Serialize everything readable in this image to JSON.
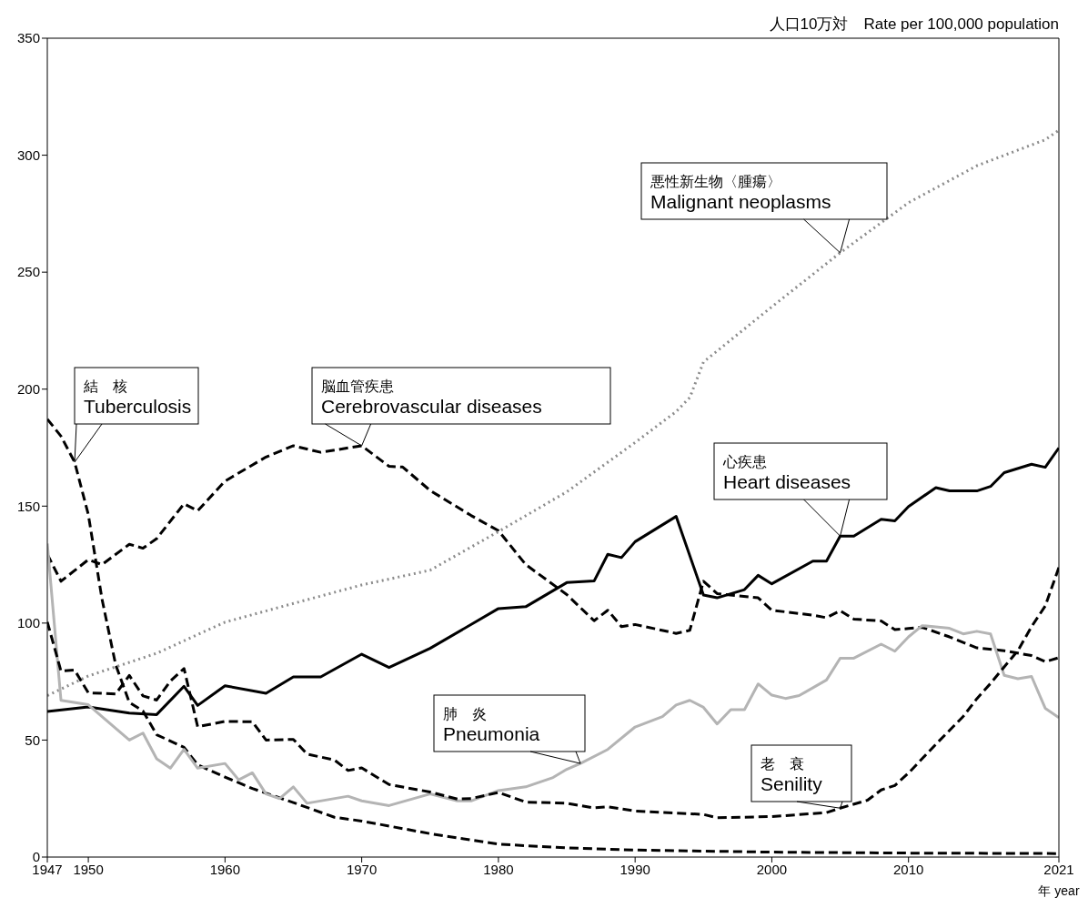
{
  "chart_data": {
    "type": "line",
    "ylabel": "人口10万対　Rate per 100,000 population",
    "xlabel": "年 year",
    "xlim": [
      1947,
      2021
    ],
    "xticks": [
      1947,
      1950,
      1960,
      1970,
      1980,
      1990,
      2000,
      2010,
      2021
    ],
    "ylim": [
      0,
      350
    ],
    "yticks": [
      0,
      50,
      100,
      150,
      200,
      250,
      300,
      350
    ],
    "grid": false,
    "legend": false,
    "marker": "none",
    "series": [
      {
        "name": "結　核\nTuberculosis",
        "color": "#000000",
        "line_style": "dashed",
        "x": [
          1947,
          1948,
          1949,
          1950,
          1951,
          1952,
          1953,
          1954,
          1955,
          1957,
          1958,
          1960,
          1962,
          1965,
          1968,
          1970,
          1975,
          1980,
          1985,
          1990,
          2000,
          2010,
          2021
        ],
        "values": [
          187.2,
          179.9,
          168.8,
          146.4,
          110.3,
          82.2,
          66.1,
          62.4,
          52.3,
          46.9,
          39.4,
          34.2,
          29.3,
          23.3,
          17,
          15.4,
          10,
          5.5,
          3.9,
          3,
          2.1,
          1.7,
          1.5
        ]
      },
      {
        "name": "脳血管疾患\nCerebrovascular diseases",
        "color": "#000000",
        "line_style": "dashed",
        "x": [
          1947,
          1948,
          1950,
          1951,
          1953,
          1954,
          1955,
          1957,
          1958,
          1960,
          1963,
          1965,
          1967,
          1970,
          1972,
          1973,
          1975,
          1978,
          1980,
          1982,
          1985,
          1987,
          1988,
          1989,
          1990,
          1993,
          1994,
          1995,
          1996,
          1999,
          2000,
          2003,
          2004,
          2005,
          2006,
          2008,
          2009,
          2010,
          2011,
          2013,
          2015,
          2017,
          2019,
          2020,
          2021
        ],
        "values": [
          129.4,
          117.9,
          127.1,
          125,
          133.7,
          132,
          136.1,
          151,
          148,
          160.7,
          171,
          175.8,
          173,
          175.8,
          167,
          166.7,
          156.7,
          146,
          139.5,
          125,
          112.2,
          101,
          105.5,
          98.5,
          99.4,
          95.6,
          96.9,
          117.9,
          112.6,
          110.8,
          105.5,
          103.4,
          102.3,
          105.3,
          101.7,
          100.9,
          97.2,
          97.7,
          98.2,
          94.1,
          89.4,
          88.2,
          86.1,
          83.5,
          85.2
        ]
      },
      {
        "name": "悪性新生物〈腫瘍〉\nMalignant neoplasms",
        "color": "#8c8c8c",
        "line_style": "dotted",
        "x": [
          1947,
          1950,
          1955,
          1960,
          1965,
          1970,
          1975,
          1980,
          1985,
          1990,
          1993,
          1994,
          1995,
          2000,
          2005,
          2010,
          2015,
          2020,
          2021
        ],
        "values": [
          69,
          77.4,
          87.1,
          100.4,
          108.4,
          116.3,
          122.6,
          139.1,
          156.1,
          177.2,
          190.4,
          196.4,
          211.6,
          235.2,
          258.3,
          279.7,
          295.5,
          306.6,
          310.7
        ]
      },
      {
        "name": "心疾患\nHeart diseases",
        "color": "#000000",
        "line_style": "solid",
        "x": [
          1947,
          1950,
          1953,
          1955,
          1957,
          1958,
          1960,
          1963,
          1965,
          1967,
          1970,
          1972,
          1975,
          1980,
          1982,
          1985,
          1987,
          1988,
          1989,
          1990,
          1992,
          1993,
          1995,
          1996,
          1998,
          1999,
          2000,
          2003,
          2004,
          2005,
          2006,
          2008,
          2009,
          2010,
          2012,
          2013,
          2015,
          2016,
          2017,
          2019,
          2020,
          2021
        ],
        "values": [
          62.2,
          64.2,
          61.5,
          60.9,
          73,
          64.8,
          73.2,
          70,
          77,
          77,
          86.7,
          81,
          89.2,
          106.2,
          107,
          117.3,
          118,
          129.4,
          128,
          134.8,
          142,
          145.6,
          112,
          110.8,
          114.3,
          120.4,
          116.8,
          126.5,
          126.5,
          137.2,
          137.2,
          144.4,
          143.7,
          149.8,
          157.9,
          156.5,
          156.5,
          158.4,
          164.3,
          167.9,
          166.6,
          174.9
        ]
      },
      {
        "name": "肺　炎\nPneumonia",
        "color": "#b4b4b4",
        "line_style": "solid",
        "x": [
          1947,
          1948,
          1950,
          1951,
          1953,
          1954,
          1955,
          1956,
          1957,
          1958,
          1960,
          1961,
          1962,
          1963,
          1964,
          1965,
          1966,
          1969,
          1970,
          1972,
          1975,
          1977,
          1978,
          1980,
          1982,
          1984,
          1985,
          1986,
          1988,
          1990,
          1992,
          1993,
          1994,
          1995,
          1996,
          1997,
          1998,
          1999,
          2000,
          2001,
          2002,
          2004,
          2005,
          2006,
          2008,
          2009,
          2010,
          2011,
          2012,
          2013,
          2014,
          2015,
          2016,
          2017,
          2018,
          2019,
          2020,
          2021
        ],
        "values": [
          134,
          67,
          65.1,
          60,
          50,
          53,
          42,
          38,
          46,
          38,
          40,
          33,
          36,
          27,
          25,
          30,
          23,
          26,
          24,
          22,
          27,
          24,
          24,
          28.4,
          30,
          34,
          37.5,
          40,
          46,
          55.6,
          60,
          65,
          67,
          64,
          56.9,
          63,
          63,
          74,
          69.2,
          67.8,
          69,
          75.7,
          85,
          85,
          91,
          88,
          94.1,
          98.9,
          98.4,
          97.8,
          95.4,
          96.5,
          95.4,
          77.7,
          76.2,
          77.2,
          63.6,
          59.6
        ]
      },
      {
        "name": "老　衰\nSenility",
        "color": "#000000",
        "line_style": "dashed",
        "x": [
          1947,
          1948,
          1949,
          1950,
          1952,
          1953,
          1954,
          1955,
          1956,
          1957,
          1958,
          1960,
          1962,
          1963,
          1965,
          1966,
          1968,
          1969,
          1970,
          1972,
          1975,
          1977,
          1978,
          1980,
          1982,
          1985,
          1987,
          1988,
          1990,
          1995,
          1996,
          2000,
          2004,
          2005,
          2007,
          2008,
          2009,
          2010,
          2012,
          2014,
          2015,
          2016,
          2017,
          2018,
          2019,
          2020,
          2021
        ],
        "values": [
          100.5,
          79.5,
          79.9,
          70.2,
          69.7,
          77.6,
          68.9,
          67.1,
          75.2,
          80.6,
          55.7,
          58,
          57.8,
          50,
          50.3,
          44,
          41.5,
          37,
          38.1,
          31,
          27.8,
          24.8,
          25,
          27.6,
          23.5,
          23,
          21,
          21.5,
          19.7,
          18.2,
          16.8,
          17.3,
          19,
          20.9,
          24.3,
          28.7,
          30.6,
          35.9,
          48.2,
          60.1,
          67.7,
          74.2,
          81.3,
          88.2,
          98.5,
          107.3,
          123.8
        ]
      }
    ]
  }
}
